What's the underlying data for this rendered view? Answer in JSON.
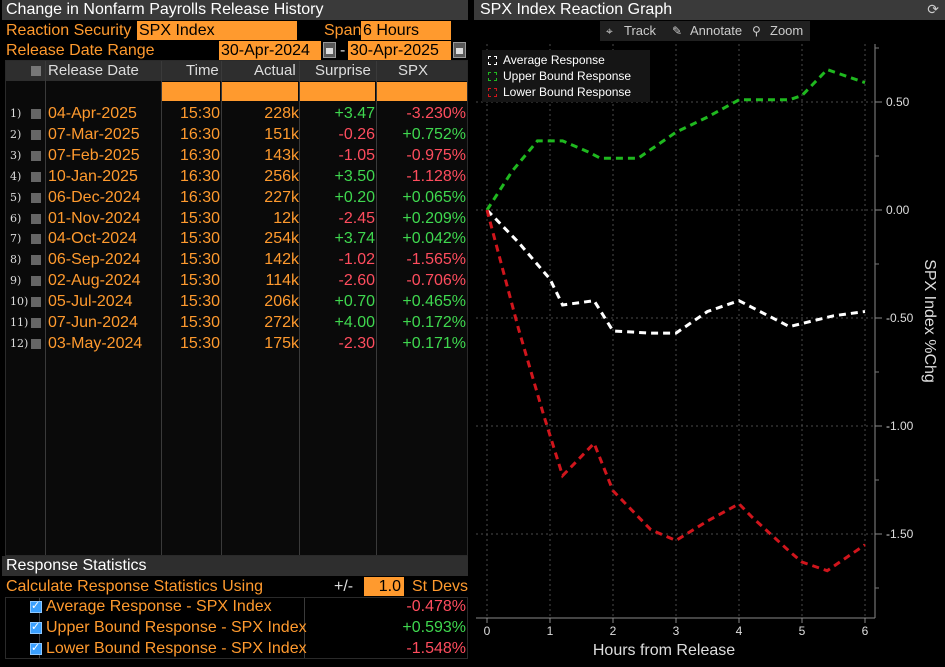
{
  "left": {
    "title": "Change in Nonfarm Payrolls Release History",
    "reaction_security_label": "Reaction Security",
    "reaction_security_value": "SPX Index",
    "span_label": "Span",
    "span_value": "6 Hours",
    "release_range_label": "Release Date Range",
    "range_start": "30-Apr-2024",
    "range_sep": "-",
    "range_end": "30-Apr-2025",
    "columns": {
      "release_date": "Release Date",
      "time": "Time",
      "actual": "Actual",
      "surprise": "Surprise",
      "spx_chg": "SPX %Chg"
    },
    "rows": [
      {
        "n": "1)",
        "date": "04-Apr-2025",
        "time": "15:30",
        "actual": "228k",
        "surprise": "+3.47",
        "chg": "-3.230%"
      },
      {
        "n": "2)",
        "date": "07-Mar-2025",
        "time": "16:30",
        "actual": "151k",
        "surprise": "-0.26",
        "chg": "+0.752%"
      },
      {
        "n": "3)",
        "date": "07-Feb-2025",
        "time": "16:30",
        "actual": "143k",
        "surprise": "-1.05",
        "chg": "-0.975%"
      },
      {
        "n": "4)",
        "date": "10-Jan-2025",
        "time": "16:30",
        "actual": "256k",
        "surprise": "+3.50",
        "chg": "-1.128%"
      },
      {
        "n": "5)",
        "date": "06-Dec-2024",
        "time": "16:30",
        "actual": "227k",
        "surprise": "+0.20",
        "chg": "+0.065%"
      },
      {
        "n": "6)",
        "date": "01-Nov-2024",
        "time": "15:30",
        "actual": "12k",
        "surprise": "-2.45",
        "chg": "+0.209%"
      },
      {
        "n": "7)",
        "date": "04-Oct-2024",
        "time": "15:30",
        "actual": "254k",
        "surprise": "+3.74",
        "chg": "+0.042%"
      },
      {
        "n": "8)",
        "date": "06-Sep-2024",
        "time": "15:30",
        "actual": "142k",
        "surprise": "-1.02",
        "chg": "-1.565%"
      },
      {
        "n": "9)",
        "date": "02-Aug-2024",
        "time": "15:30",
        "actual": "114k",
        "surprise": "-2.60",
        "chg": "-0.706%"
      },
      {
        "n": "10)",
        "date": "05-Jul-2024",
        "time": "15:30",
        "actual": "206k",
        "surprise": "+0.70",
        "chg": "+0.465%"
      },
      {
        "n": "11)",
        "date": "07-Jun-2024",
        "time": "15:30",
        "actual": "272k",
        "surprise": "+4.00",
        "chg": "+0.172%"
      },
      {
        "n": "12)",
        "date": "03-May-2024",
        "time": "15:30",
        "actual": "175k",
        "surprise": "-2.30",
        "chg": "+0.171%"
      }
    ],
    "stats": {
      "title": "Response Statistics",
      "calc_label": "Calculate Response Statistics Using",
      "pm": "+/-",
      "stdev_value": "1.0",
      "stdev_unit": "St Devs",
      "items": [
        {
          "label": "Average Response - SPX Index",
          "value": "-0.478%"
        },
        {
          "label": "Upper Bound Response - SPX Index",
          "value": "+0.593%"
        },
        {
          "label": "Lower Bound Response - SPX Index",
          "value": "-1.548%"
        }
      ]
    }
  },
  "right": {
    "title": "SPX Index Reaction Graph",
    "toolbar": {
      "track": "Track",
      "annotate": "Annotate",
      "zoom": "Zoom"
    }
  },
  "colors": {
    "orange": "#ff9a2e",
    "positive": "#3fd84f",
    "negative": "#ff4d5e",
    "average_line": "#ffffff",
    "upper_line": "#1fb81f",
    "lower_line": "#d0151c"
  },
  "chart_data": {
    "type": "line",
    "xlabel": "Hours from Release",
    "ylabel": "SPX Index %Chg",
    "xlim": [
      0,
      6
    ],
    "ylim": [
      -1.75,
      0.75
    ],
    "x_ticks": [
      "0",
      "1",
      "2",
      "3",
      "4",
      "5",
      "6"
    ],
    "y_ticks": [
      "0.50",
      "0.00",
      "-0.50",
      "-1.00",
      "-1.50"
    ],
    "legend_position": "top-left",
    "grid": true,
    "series": [
      {
        "name": "Average Response",
        "color": "#ffffff",
        "x": [
          0,
          0.5,
          1.0,
          1.2,
          1.7,
          2.0,
          2.6,
          3.0,
          3.5,
          4.0,
          4.2,
          4.8,
          5.5,
          6.0
        ],
        "y": [
          0.0,
          -0.15,
          -0.32,
          -0.44,
          -0.42,
          -0.56,
          -0.57,
          -0.57,
          -0.47,
          -0.42,
          -0.45,
          -0.54,
          -0.49,
          -0.47
        ]
      },
      {
        "name": "Upper Bound Response",
        "color": "#1fb81f",
        "x": [
          0,
          0.4,
          0.8,
          1.2,
          1.6,
          1.8,
          2.4,
          3.0,
          3.5,
          4.0,
          4.8,
          5.0,
          5.4,
          6.0
        ],
        "y": [
          0.0,
          0.18,
          0.32,
          0.32,
          0.27,
          0.24,
          0.24,
          0.36,
          0.43,
          0.51,
          0.51,
          0.53,
          0.65,
          0.59
        ]
      },
      {
        "name": "Lower Bound Response",
        "color": "#d0151c",
        "x": [
          0,
          0.5,
          0.9,
          1.2,
          1.7,
          2.0,
          2.6,
          3.0,
          3.5,
          4.0,
          4.2,
          4.8,
          5.0,
          5.4,
          6.0
        ],
        "y": [
          0.0,
          -0.55,
          -0.95,
          -1.23,
          -1.08,
          -1.3,
          -1.48,
          -1.53,
          -1.44,
          -1.36,
          -1.42,
          -1.58,
          -1.63,
          -1.67,
          -1.55
        ]
      }
    ]
  }
}
